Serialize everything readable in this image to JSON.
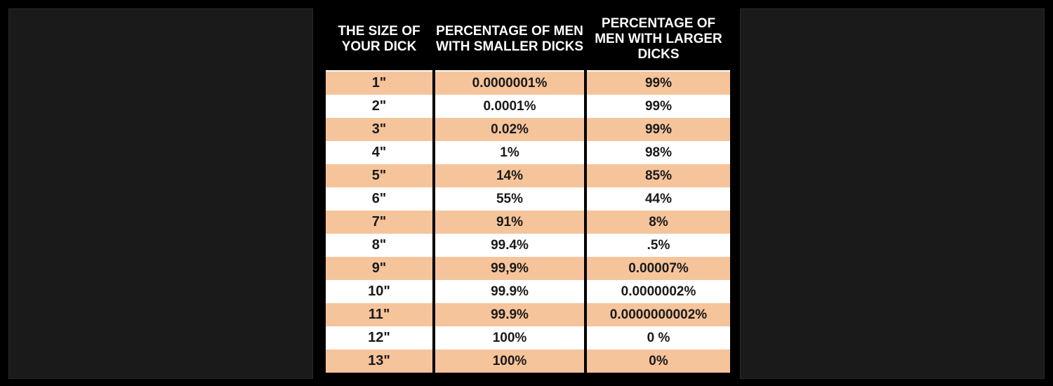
{
  "colors": {
    "background": "#000000",
    "header_text": "#ffffff",
    "row_odd": "#f6c49b",
    "row_even": "#ffffff",
    "cell_text": "#1a1a1a"
  },
  "table": {
    "headers": {
      "size": "THE SIZE OF YOUR DICK",
      "smaller": "PERCENTAGE OF MEN WITH SMALLER DICKS",
      "larger": "PERCENTAGE OF MEN WITH LARGER DICKS"
    },
    "rows": [
      {
        "size": "1\"",
        "smaller": "0.0000001%",
        "larger": "99%"
      },
      {
        "size": "2\"",
        "smaller": "0.0001%",
        "larger": "99%"
      },
      {
        "size": "3\"",
        "smaller": "0.02%",
        "larger": "99%"
      },
      {
        "size": "4\"",
        "smaller": "1%",
        "larger": "98%"
      },
      {
        "size": "5\"",
        "smaller": "14%",
        "larger": "85%"
      },
      {
        "size": "6\"",
        "smaller": "55%",
        "larger": "44%"
      },
      {
        "size": "7\"",
        "smaller": "91%",
        "larger": "8%"
      },
      {
        "size": "8\"",
        "smaller": "99.4%",
        "larger": ".5%"
      },
      {
        "size": "9\"",
        "smaller": "99,9%",
        "larger": "0.00007%"
      },
      {
        "size": "10\"",
        "smaller": "99.9%",
        "larger": "0.0000002%"
      },
      {
        "size": "11\"",
        "smaller": "99.9%",
        "larger": "0.0000000002%"
      },
      {
        "size": "12\"",
        "smaller": "100%",
        "larger": "0 %"
      },
      {
        "size": "13\"",
        "smaller": "100%",
        "larger": "0%"
      }
    ]
  }
}
